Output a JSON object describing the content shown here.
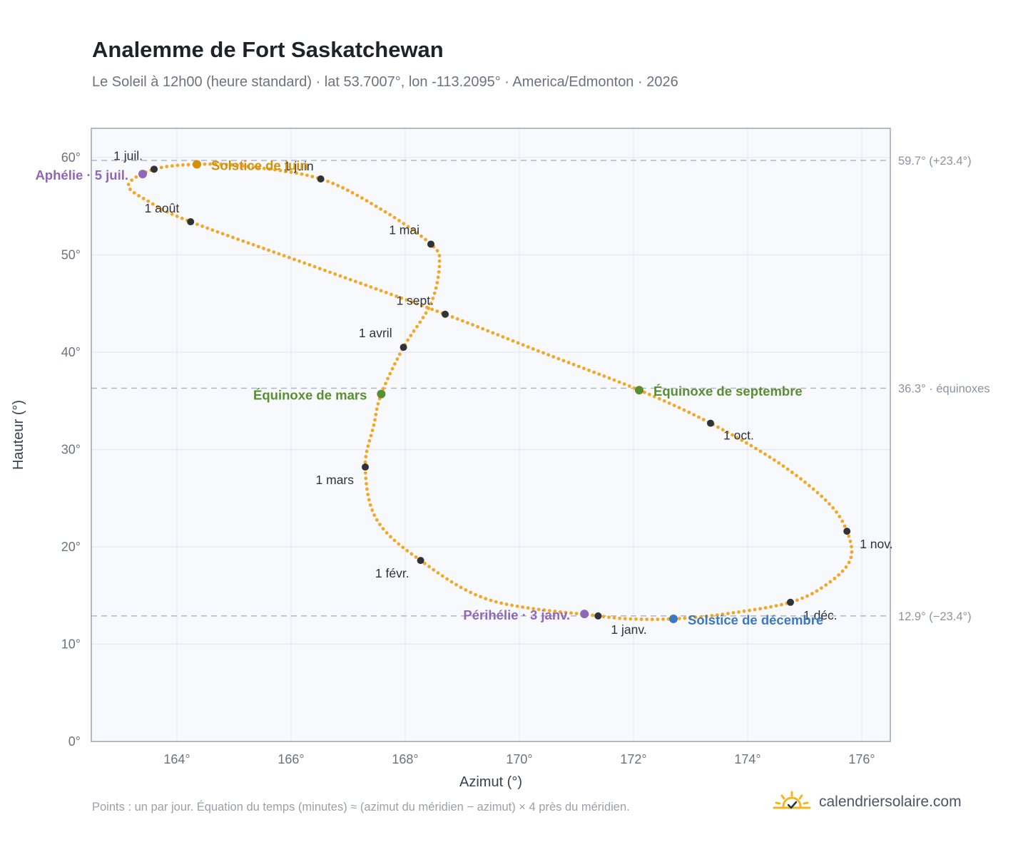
{
  "header": {
    "title": "Analemme de Fort Saskatchewan",
    "subtitle": "Le Soleil à 12h00 (heure standard) · lat 53.7007°, lon -113.2095° · America/Edmonton · 2026"
  },
  "footer": {
    "note": "Points : un par jour. Équation du temps (minutes) ≈ (azimut du méridien − azimut) × 4 près du méridien.",
    "brand": "calendriersolaire.com"
  },
  "chart_data": {
    "type": "scatter",
    "xlabel": "Azimut (°)",
    "ylabel": "Hauteur (°)",
    "xlim": [
      162.5,
      176.5
    ],
    "ylim": [
      0,
      63
    ],
    "x_ticks": [
      "164°",
      "166°",
      "168°",
      "170°",
      "172°",
      "174°",
      "176°"
    ],
    "x_tick_values": [
      164,
      166,
      168,
      170,
      172,
      174,
      176
    ],
    "y_ticks": [
      "0°",
      "10°",
      "20°",
      "30°",
      "40°",
      "50°",
      "60°"
    ],
    "y_tick_values": [
      0,
      10,
      20,
      30,
      40,
      50,
      60
    ],
    "grid": true,
    "colors": {
      "path": "#f5a623",
      "month": "#2f3338",
      "solstice_june": "#d4900a",
      "solstice_dec": "#3a78c2",
      "equinox": "#5a8e32",
      "apsis": "#8f67b8",
      "refline": "#aeb9c5",
      "plot_bg": "#f7f9fc",
      "frame": "#9aa6b4",
      "grid": "#e4e9ef"
    },
    "reference_lines": [
      {
        "y": 59.7,
        "label": "59.7° (+23.4°)"
      },
      {
        "y": 36.3,
        "label": "36.3° · équinoxes"
      },
      {
        "y": 12.9,
        "label": "12.9° (−23.4°)"
      }
    ],
    "months": [
      {
        "label": "1 janv.",
        "x": 171.38,
        "y": 12.9,
        "lx": 18,
        "ly": 25,
        "anchor": "start"
      },
      {
        "label": "1 févr.",
        "x": 168.27,
        "y": 18.6,
        "lx": -16,
        "ly": 24,
        "anchor": "end"
      },
      {
        "label": "1 mars",
        "x": 167.3,
        "y": 28.2,
        "lx": -16,
        "ly": 24,
        "anchor": "end"
      },
      {
        "label": "1 avril",
        "x": 167.97,
        "y": 40.5,
        "lx": -16,
        "ly": -14,
        "anchor": "end"
      },
      {
        "label": "1 mai",
        "x": 168.45,
        "y": 51.1,
        "lx": -16,
        "ly": -14,
        "anchor": "end"
      },
      {
        "label": "1 juin",
        "x": 166.52,
        "y": 57.8,
        "lx": -10,
        "ly": -12,
        "anchor": "end"
      },
      {
        "label": "1 juil.",
        "x": 163.6,
        "y": 58.8,
        "lx": -16,
        "ly": -13,
        "anchor": "end"
      },
      {
        "label": "1 août",
        "x": 164.24,
        "y": 53.4,
        "lx": -16,
        "ly": -13,
        "anchor": "end"
      },
      {
        "label": "1 sept.",
        "x": 168.7,
        "y": 43.9,
        "lx": -16,
        "ly": -13,
        "anchor": "end"
      },
      {
        "label": "1 oct.",
        "x": 173.35,
        "y": 32.7,
        "lx": 18,
        "ly": 23,
        "anchor": "start"
      },
      {
        "label": "1 nov.",
        "x": 175.74,
        "y": 21.6,
        "lx": 18,
        "ly": 24,
        "anchor": "start"
      },
      {
        "label": "1 déc.",
        "x": 174.75,
        "y": 14.3,
        "lx": 18,
        "ly": 24,
        "anchor": "start"
      }
    ],
    "events": [
      {
        "label": "Solstice de juin",
        "x": 164.35,
        "y": 59.3,
        "kind": "solstice_june",
        "lx": 20,
        "ly": 8,
        "anchor": "start"
      },
      {
        "label": "Solstice de décembre",
        "x": 172.7,
        "y": 12.6,
        "kind": "solstice_dec",
        "lx": 20,
        "ly": 8,
        "anchor": "start"
      },
      {
        "label": "Équinoxe de mars",
        "x": 167.58,
        "y": 35.7,
        "kind": "equinox",
        "lx": -20,
        "ly": 8,
        "anchor": "end"
      },
      {
        "label": "Équinoxe de septembre",
        "x": 172.1,
        "y": 36.1,
        "kind": "equinox",
        "lx": 20,
        "ly": 8,
        "anchor": "start"
      },
      {
        "label": "Aphélie · 5 juil.",
        "x": 163.4,
        "y": 58.3,
        "kind": "apsis",
        "lx": -20,
        "ly": 8,
        "anchor": "end"
      },
      {
        "label": "Périhélie · 3 janv.",
        "x": 171.14,
        "y": 13.1,
        "kind": "apsis",
        "lx": -20,
        "ly": 8,
        "anchor": "end"
      }
    ],
    "path_keypoints": [
      [
        171.38,
        12.9
      ],
      [
        169.5,
        14.5
      ],
      [
        168.27,
        18.6
      ],
      [
        167.5,
        22.8
      ],
      [
        167.3,
        28.2
      ],
      [
        167.45,
        32.5
      ],
      [
        167.58,
        35.7
      ],
      [
        167.97,
        40.5
      ],
      [
        168.45,
        45.0
      ],
      [
        168.6,
        49.2
      ],
      [
        168.45,
        51.1
      ],
      [
        167.6,
        54.6
      ],
      [
        166.52,
        57.8
      ],
      [
        165.2,
        59.1
      ],
      [
        164.35,
        59.3
      ],
      [
        163.6,
        58.8
      ],
      [
        163.15,
        57.2
      ],
      [
        163.5,
        55.5
      ],
      [
        164.24,
        53.4
      ],
      [
        166.5,
        48.6
      ],
      [
        168.7,
        43.9
      ],
      [
        170.3,
        40.2
      ],
      [
        172.1,
        36.1
      ],
      [
        173.35,
        32.7
      ],
      [
        174.55,
        28.6
      ],
      [
        175.4,
        24.6
      ],
      [
        175.74,
        21.6
      ],
      [
        175.8,
        18.7
      ],
      [
        175.4,
        16.2
      ],
      [
        174.75,
        14.3
      ],
      [
        173.6,
        13.1
      ],
      [
        172.7,
        12.6
      ],
      [
        171.9,
        12.6
      ],
      [
        171.38,
        12.9
      ]
    ]
  }
}
